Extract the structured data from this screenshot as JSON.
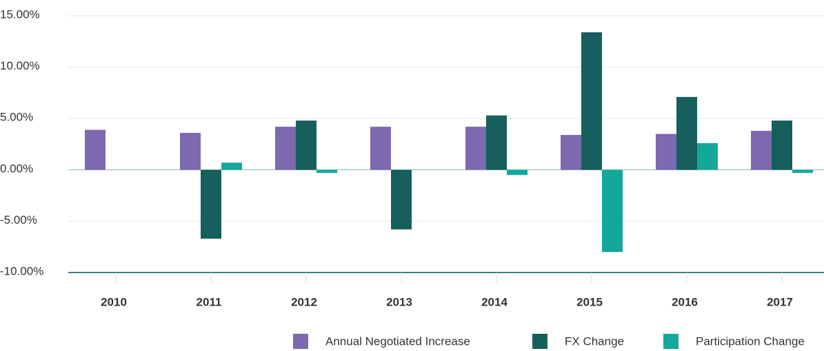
{
  "chart_data": {
    "type": "bar",
    "categories": [
      "2010",
      "2011",
      "2012",
      "2013",
      "2014",
      "2015",
      "2016",
      "2017"
    ],
    "series": [
      {
        "name": "Annual Negotiated Increase",
        "color": "#7e68b0",
        "values": [
          3.9,
          3.6,
          4.2,
          4.2,
          4.2,
          3.4,
          3.5,
          3.8
        ]
      },
      {
        "name": "FX Change",
        "color": "#175f5c",
        "values": [
          0,
          -6.7,
          4.8,
          -5.8,
          5.3,
          13.4,
          7.1,
          4.8
        ]
      },
      {
        "name": "Participation Change",
        "color": "#13a89b",
        "values": [
          0,
          0.7,
          -0.3,
          0,
          -0.5,
          -8.0,
          2.6,
          -0.3
        ]
      }
    ],
    "ylim": [
      -10,
      15
    ],
    "yticks": [
      {
        "value": 15,
        "label": "15.00%"
      },
      {
        "value": 10,
        "label": "10.00%"
      },
      {
        "value": 5,
        "label": "5.00%"
      },
      {
        "value": 0,
        "label": "0.00%"
      },
      {
        "value": -5,
        "label": "-5.00%"
      },
      {
        "value": -10,
        "label": "-10.00%"
      }
    ],
    "grid": true,
    "legend": "bottom-right"
  }
}
